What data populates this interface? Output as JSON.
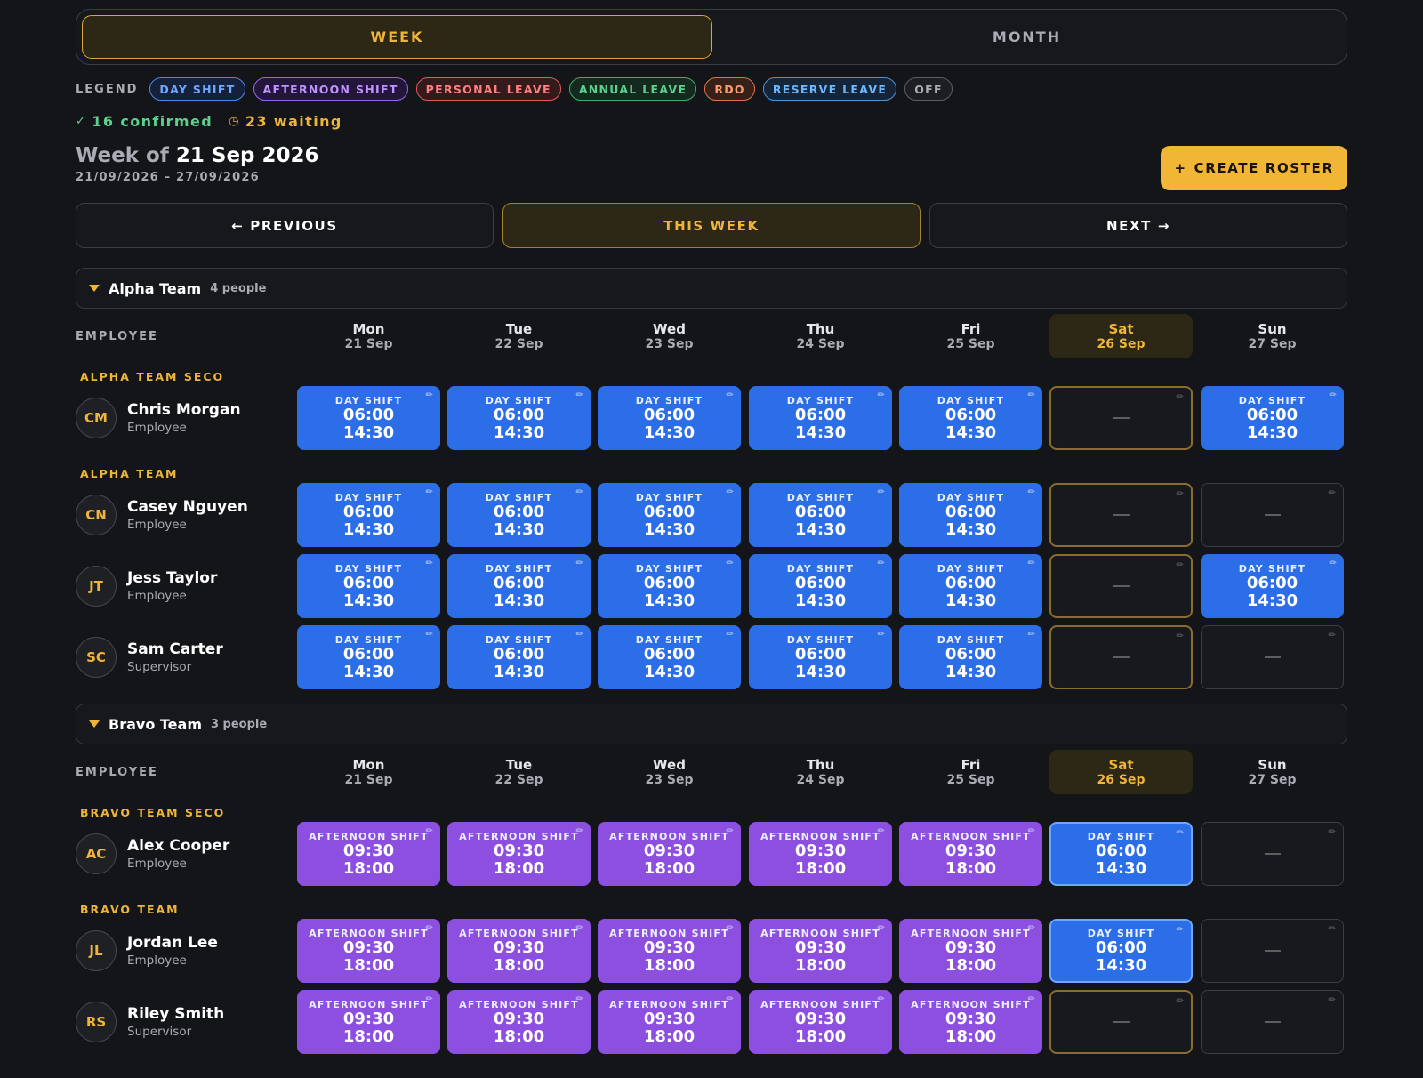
{
  "view_toggle": {
    "week": "WEEK",
    "month": "MONTH"
  },
  "legend": {
    "label": "LEGEND",
    "items": [
      "DAY SHIFT",
      "AFTERNOON SHIFT",
      "PERSONAL LEAVE",
      "ANNUAL LEAVE",
      "RDO",
      "RESERVE LEAVE",
      "OFF"
    ]
  },
  "status": {
    "confirmed": "16 confirmed",
    "waiting": "23 waiting",
    "confirmed_icon": "check-icon",
    "waiting_icon": "clock-icon"
  },
  "week": {
    "prefix": "Week of",
    "date": "21 Sep 2026",
    "range": "21/09/2026 – 27/09/2026"
  },
  "create_button": {
    "icon": "+",
    "label": "CREATE ROSTER"
  },
  "nav": {
    "previous": "← PREVIOUS",
    "this_week": "THIS WEEK",
    "next": "NEXT →"
  },
  "days": [
    {
      "name": "Mon",
      "date": "21 Sep"
    },
    {
      "name": "Tue",
      "date": "22 Sep"
    },
    {
      "name": "Wed",
      "date": "23 Sep"
    },
    {
      "name": "Thu",
      "date": "24 Sep"
    },
    {
      "name": "Fri",
      "date": "25 Sep"
    },
    {
      "name": "Sat",
      "date": "26 Sep"
    },
    {
      "name": "Sun",
      "date": "27 Sep"
    }
  ],
  "employee_col_label": "EMPLOYEE",
  "shift_labels": {
    "day": "DAY SHIFT",
    "afternoon": "AFTERNOON SHIFT"
  },
  "shift_times": {
    "day": [
      "06:00",
      "14:30"
    ],
    "afternoon": [
      "09:30",
      "18:00"
    ]
  },
  "teams": [
    {
      "name": "Alpha Team",
      "count": "4 people",
      "groups": [
        {
          "label": "ALPHA TEAM SECO",
          "employees": [
            {
              "initials": "CM",
              "name": "Chris Morgan",
              "role": "Employee",
              "shifts": [
                "day",
                "day",
                "day",
                "day",
                "day",
                "off",
                "day"
              ]
            }
          ]
        },
        {
          "label": "ALPHA TEAM",
          "employees": [
            {
              "initials": "CN",
              "name": "Casey Nguyen",
              "role": "Employee",
              "shifts": [
                "day",
                "day",
                "day",
                "day",
                "day",
                "off",
                "off"
              ]
            },
            {
              "initials": "JT",
              "name": "Jess Taylor",
              "role": "Employee",
              "shifts": [
                "day",
                "day",
                "day",
                "day",
                "day",
                "off",
                "day"
              ]
            },
            {
              "initials": "SC",
              "name": "Sam Carter",
              "role": "Supervisor",
              "shifts": [
                "day",
                "day",
                "day",
                "day",
                "day",
                "off",
                "off"
              ]
            }
          ]
        }
      ]
    },
    {
      "name": "Bravo Team",
      "count": "3 people",
      "groups": [
        {
          "label": "BRAVO TEAM SECO",
          "employees": [
            {
              "initials": "AC",
              "name": "Alex Cooper",
              "role": "Employee",
              "shifts": [
                "afternoon",
                "afternoon",
                "afternoon",
                "afternoon",
                "afternoon",
                "day",
                "off"
              ]
            }
          ]
        },
        {
          "label": "BRAVO TEAM",
          "employees": [
            {
              "initials": "JL",
              "name": "Jordan Lee",
              "role": "Employee",
              "shifts": [
                "afternoon",
                "afternoon",
                "afternoon",
                "afternoon",
                "afternoon",
                "day",
                "off"
              ]
            },
            {
              "initials": "RS",
              "name": "Riley Smith",
              "role": "Supervisor",
              "shifts": [
                "afternoon",
                "afternoon",
                "afternoon",
                "afternoon",
                "afternoon",
                "off",
                "off"
              ]
            }
          ]
        }
      ]
    }
  ]
}
